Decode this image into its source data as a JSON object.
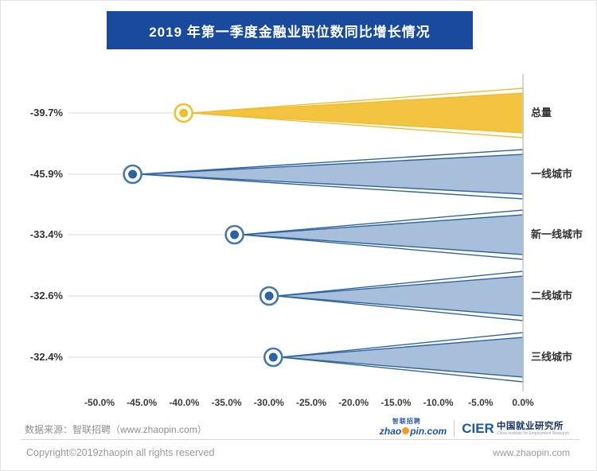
{
  "title": "2019 年第一季度金融业职位数同比增长情况",
  "chart_data": {
    "type": "bar",
    "subtype": "funnel-lollipop-horizontal",
    "categories": [
      "总量",
      "一线城市",
      "新一线城市",
      "二线城市",
      "三线城市"
    ],
    "values": [
      -39.7,
      -45.9,
      -33.4,
      -32.6,
      -32.4
    ],
    "rows": [
      {
        "category": "总量",
        "value": -39.7,
        "value_label": "-39.7%",
        "color": "yellow"
      },
      {
        "category": "一线城市",
        "value": -45.9,
        "value_label": "-45.9%",
        "color": "blue"
      },
      {
        "category": "新一线城市",
        "value": -33.4,
        "value_label": "-33.4%",
        "color": "blue"
      },
      {
        "category": "二线城市",
        "value": -32.6,
        "value_label": "-32.6%",
        "color": "blue"
      },
      {
        "category": "三线城市",
        "value": -32.4,
        "value_label": "-32.4%",
        "color": "blue"
      }
    ],
    "x_ticks": [
      "-50.0%",
      "-45.0%",
      "-40.0%",
      "-35.0%",
      "-30.0%",
      "-25.0%",
      "-20.0%",
      "-15.0%",
      "-10.0%",
      "-5.0%",
      "0.0%"
    ],
    "xlim": [
      -50,
      0
    ],
    "title": "2019 年第一季度金融业职位数同比增长情况",
    "legend": "none",
    "grid": "off",
    "colors": {
      "title_bar_bg": "#1A4A9E",
      "yellow_fill": "#F3C440",
      "yellow_stroke": "#EFBC33",
      "yellow_ring": "#EEC32F",
      "yellow_dot": "#EFC02B",
      "blue_fill": "#A8BFDB",
      "blue_stroke": "#2F649E",
      "blue_ring": "#4878B0",
      "blue_dot": "#2D63A4",
      "leader_line": "#E2E2E2",
      "axis_line": "#C8C8C8"
    }
  },
  "footer": {
    "source": "数据来源：智联招聘（www.zhaopin.com）",
    "copyright": "Copyright©2019zhaopin all rights reserved",
    "website": "www.zhaopin.com",
    "zhaopin_logo": {
      "cn": "智联招聘",
      "en_pre": "zhao",
      "en_post": "pin.com"
    },
    "cier": {
      "abbr": "CIER",
      "cn": "中国就业研究所",
      "en": "China Institute for Employment Research"
    }
  }
}
